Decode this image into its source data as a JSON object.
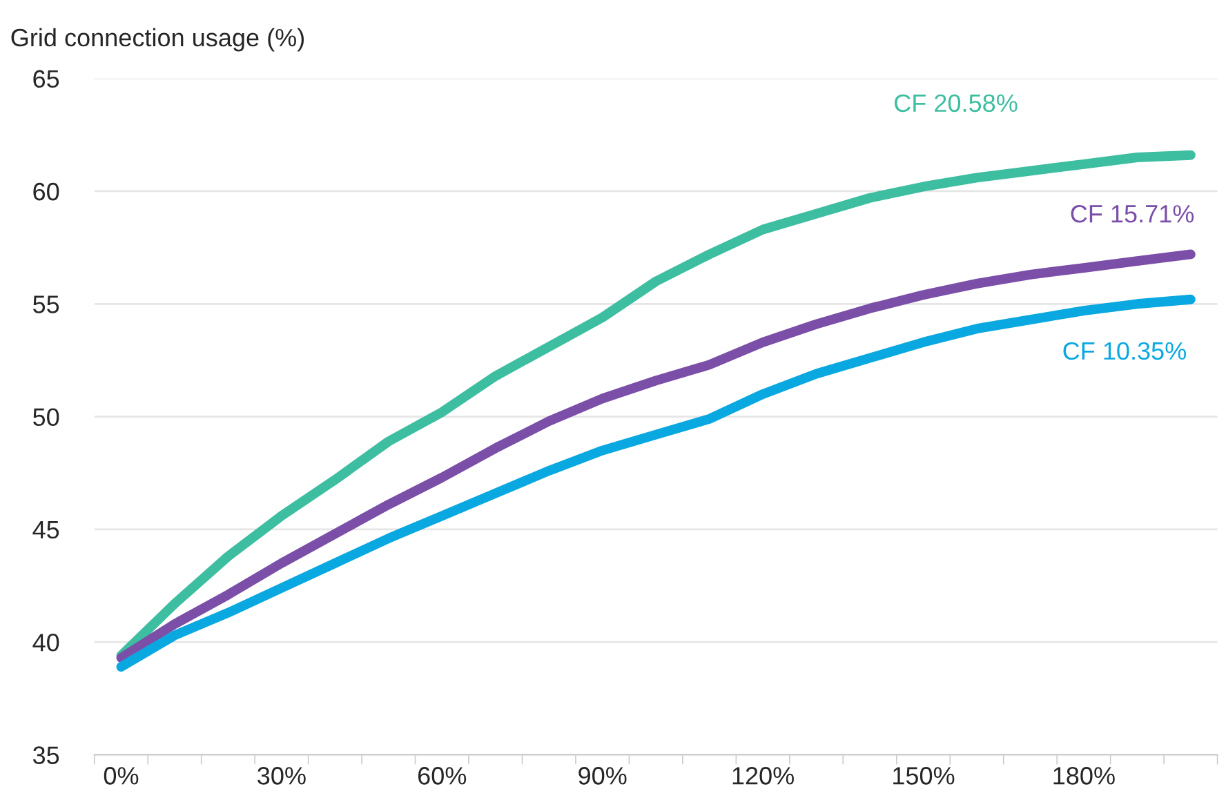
{
  "chart_data": {
    "type": "line",
    "ylabel": "Grid connection usage (%)",
    "categories": [
      "0%",
      null,
      null,
      "30%",
      null,
      null,
      "60%",
      null,
      null,
      "90%",
      null,
      null,
      "120%",
      null,
      null,
      "150%",
      null,
      null,
      "180%",
      null,
      null
    ],
    "series": [
      {
        "name": "CF 20.58%",
        "color": "#3dbea0",
        "values": [
          39.4,
          41.7,
          43.8,
          45.6,
          47.2,
          48.9,
          50.2,
          51.8,
          53.1,
          54.4,
          56.0,
          57.2,
          58.3,
          59.0,
          59.7,
          60.2,
          60.6,
          60.9,
          61.2,
          61.5,
          61.6
        ]
      },
      {
        "name": "CF 15.71%",
        "color": "#7b4fa8",
        "values": [
          39.3,
          40.8,
          42.1,
          43.5,
          44.8,
          46.1,
          47.3,
          48.6,
          49.8,
          50.8,
          51.6,
          52.3,
          53.3,
          54.1,
          54.8,
          55.4,
          55.9,
          56.3,
          56.6,
          56.9,
          57.2
        ]
      },
      {
        "name": "CF 10.35%",
        "color": "#0aa8e0",
        "values": [
          38.9,
          40.3,
          41.3,
          42.4,
          43.5,
          44.6,
          45.6,
          46.6,
          47.6,
          48.5,
          49.2,
          49.9,
          51.0,
          51.9,
          52.6,
          53.3,
          53.9,
          54.3,
          54.7,
          55.0,
          55.2
        ]
      }
    ],
    "ylim": [
      35,
      65
    ],
    "yticks": [
      35,
      40,
      45,
      50,
      55,
      60,
      65
    ],
    "grid": "y",
    "legend": false,
    "marker": "none",
    "line_style": "solid"
  }
}
